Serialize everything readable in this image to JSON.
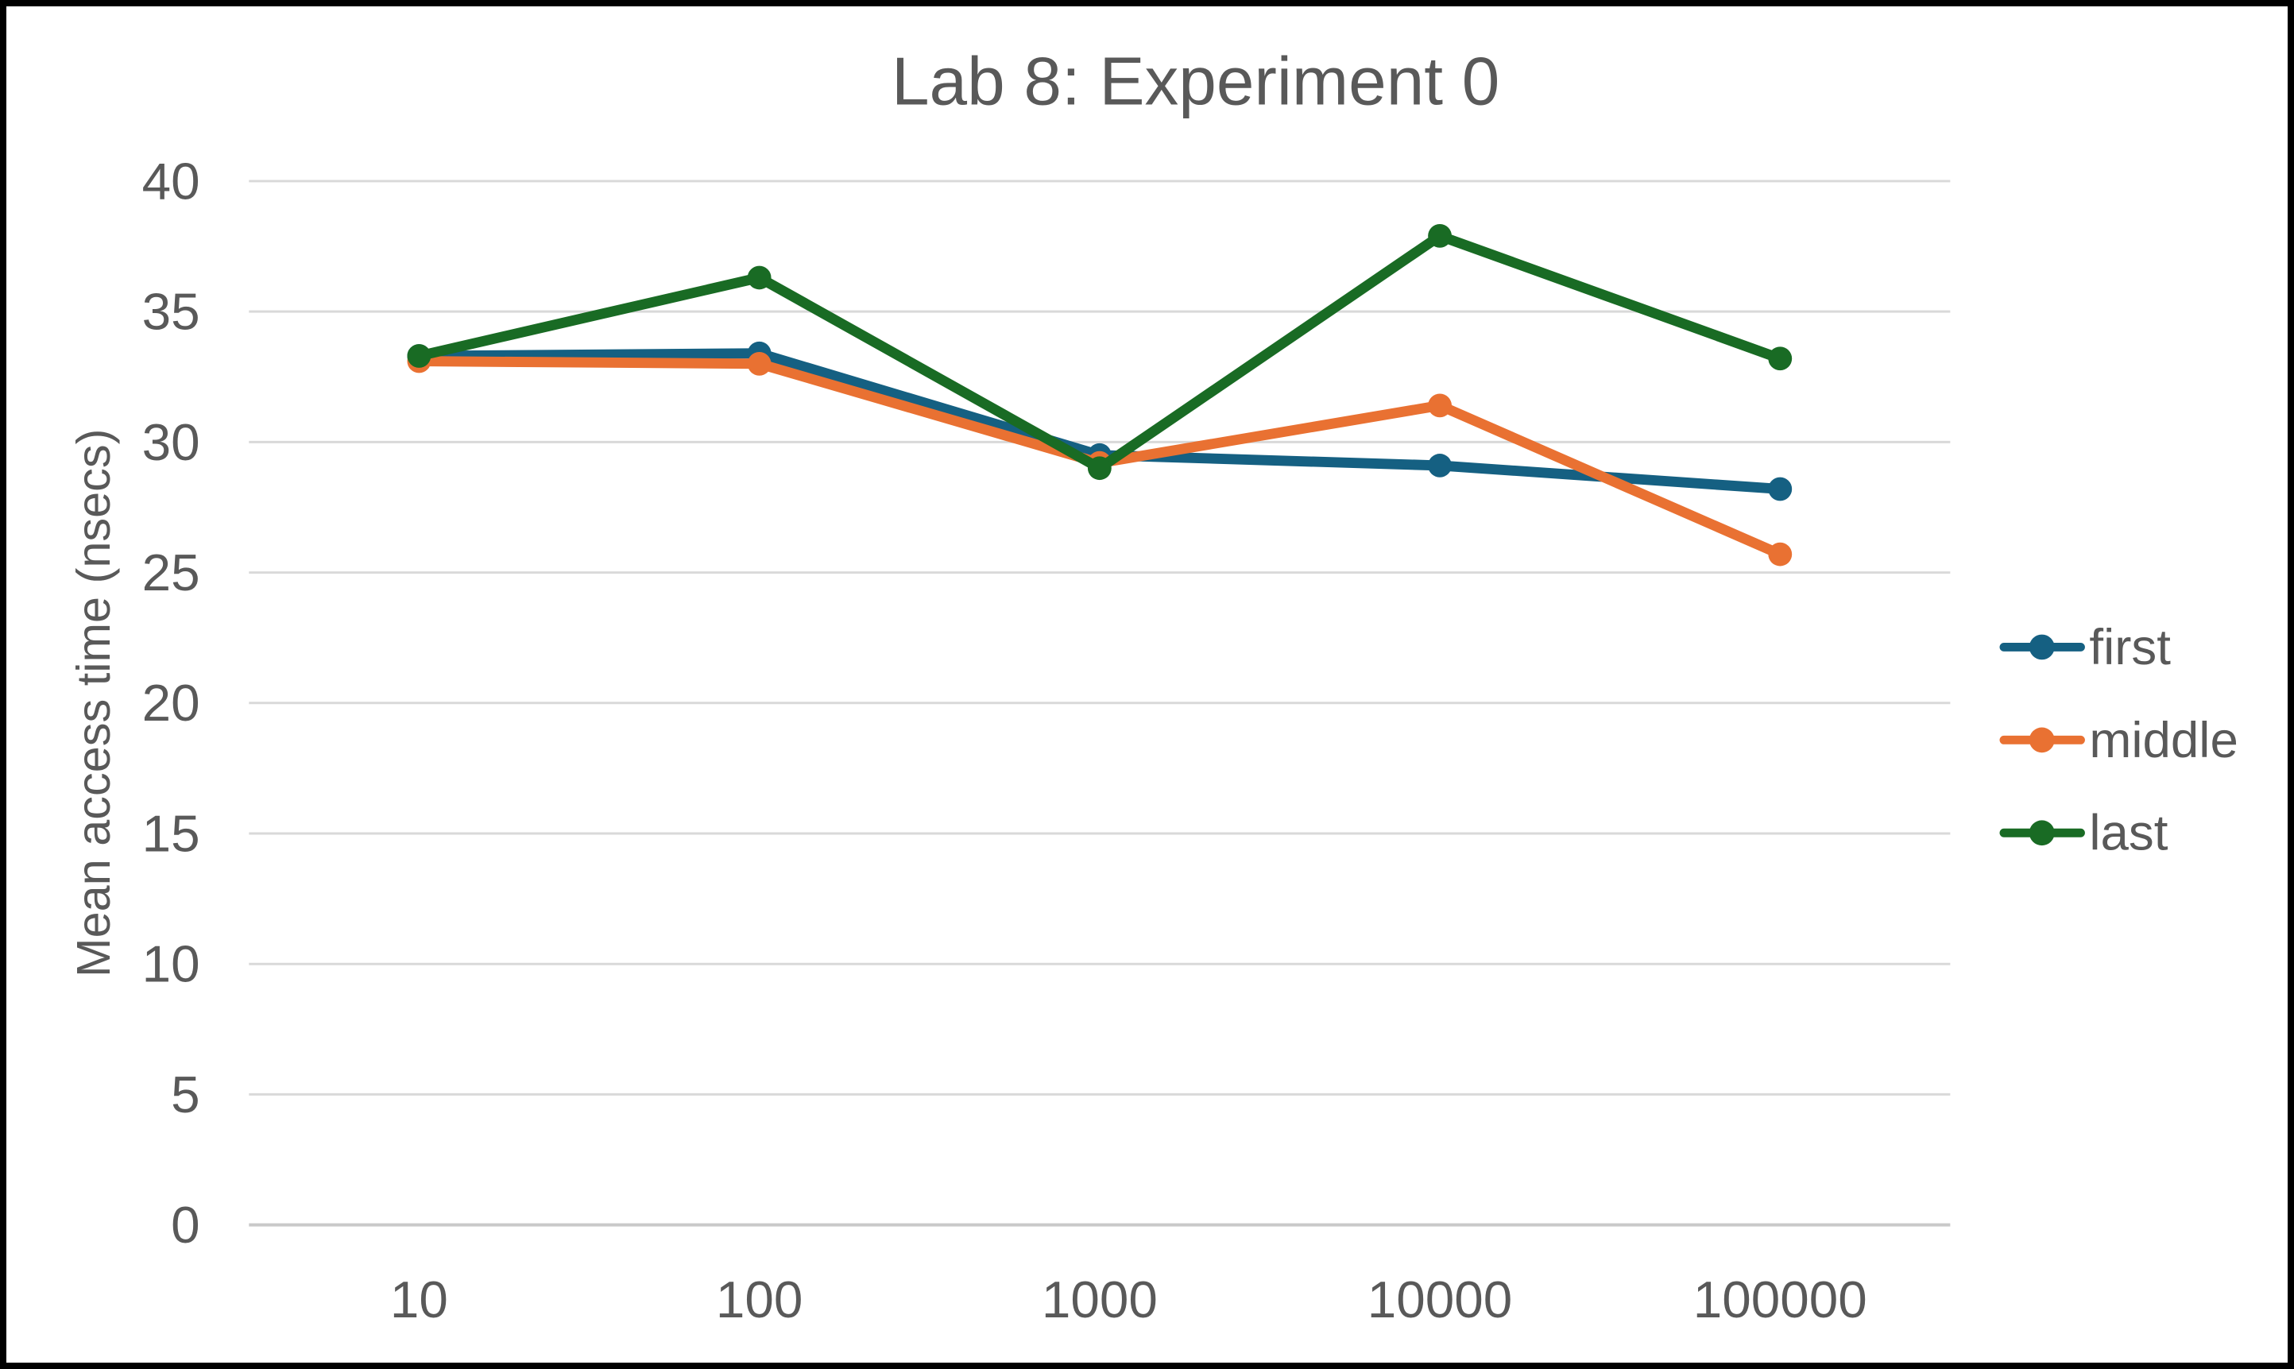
{
  "chart_data": {
    "type": "line",
    "title": "Lab 8: Experiment 0",
    "ylabel": "Mean access time (nsecs)",
    "xlabel": "",
    "categories": [
      "10",
      "100",
      "1000",
      "10000",
      "100000"
    ],
    "series": [
      {
        "name": "first",
        "color": "#156082",
        "values": [
          33.3,
          33.4,
          29.5,
          29.1,
          28.2
        ]
      },
      {
        "name": "middle",
        "color": "#E97132",
        "values": [
          33.1,
          33.0,
          29.2,
          31.4,
          25.7
        ]
      },
      {
        "name": "last",
        "color": "#196B24",
        "values": [
          33.3,
          36.3,
          29.0,
          37.9,
          33.2
        ]
      }
    ],
    "ylim": [
      0,
      40
    ],
    "y_ticks": [
      0,
      5,
      10,
      15,
      20,
      25,
      30,
      35,
      40
    ],
    "grid": "horizontal",
    "legend_position": "right",
    "marker": "circle"
  },
  "colors": {
    "text": "#595959",
    "gridline": "#D9D9D9",
    "axis_line": "#C9C9C9",
    "background": "#FFFFFF",
    "frame_border": "#000000"
  }
}
